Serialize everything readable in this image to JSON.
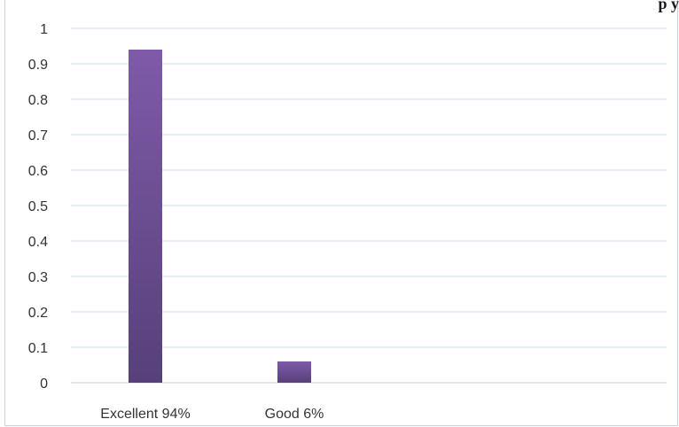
{
  "chart_data": {
    "type": "bar",
    "title": "",
    "title_fragment_visible": "p            y",
    "categories": [
      "Excellent 94%",
      "Good 6%",
      "",
      ""
    ],
    "values": [
      0.94,
      0.06,
      null,
      null
    ],
    "ylim": [
      0,
      1
    ],
    "yticks": [
      "0",
      "0.1",
      "0.2",
      "0.3",
      "0.4",
      "0.5",
      "0.6",
      "0.7",
      "0.8",
      "0.9",
      "1"
    ],
    "xlabel": "",
    "ylabel": "",
    "grid": true,
    "legend": "none",
    "colors": {
      "bar_top": "#7f5aa8",
      "bar_bottom": "#57407a",
      "grid": "#cfdbe8",
      "axis": "#c8d0dc"
    }
  }
}
